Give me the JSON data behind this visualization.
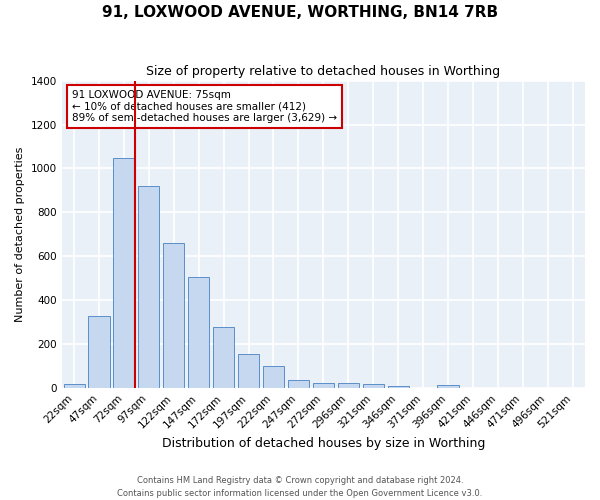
{
  "title": "91, LOXWOOD AVENUE, WORTHING, BN14 7RB",
  "subtitle": "Size of property relative to detached houses in Worthing",
  "xlabel": "Distribution of detached houses by size in Worthing",
  "ylabel": "Number of detached properties",
  "bar_color": "#c5d8f0",
  "bar_edge_color": "#5b8fc9",
  "bg_color": "#eaf0f8",
  "grid_color": "#ffffff",
  "annotation_box_color": "#cc0000",
  "vline_color": "#cc0000",
  "categories": [
    "22sqm",
    "47sqm",
    "72sqm",
    "97sqm",
    "122sqm",
    "147sqm",
    "172sqm",
    "197sqm",
    "222sqm",
    "247sqm",
    "272sqm",
    "296sqm",
    "321sqm",
    "346sqm",
    "371sqm",
    "396sqm",
    "421sqm",
    "446sqm",
    "471sqm",
    "496sqm",
    "521sqm"
  ],
  "values": [
    20,
    330,
    1050,
    920,
    660,
    505,
    280,
    155,
    100,
    40,
    25,
    25,
    18,
    10,
    0,
    15,
    0,
    0,
    0,
    0,
    0
  ],
  "vline_x_index": 2.45,
  "annotation_text": "91 LOXWOOD AVENUE: 75sqm\n← 10% of detached houses are smaller (412)\n89% of semi-detached houses are larger (3,629) →",
  "footer_text": "Contains HM Land Registry data © Crown copyright and database right 2024.\nContains public sector information licensed under the Open Government Licence v3.0.",
  "ylim": [
    0,
    1400
  ],
  "yticks": [
    0,
    200,
    400,
    600,
    800,
    1000,
    1200,
    1400
  ],
  "figsize": [
    6.0,
    5.0
  ],
  "dpi": 100
}
